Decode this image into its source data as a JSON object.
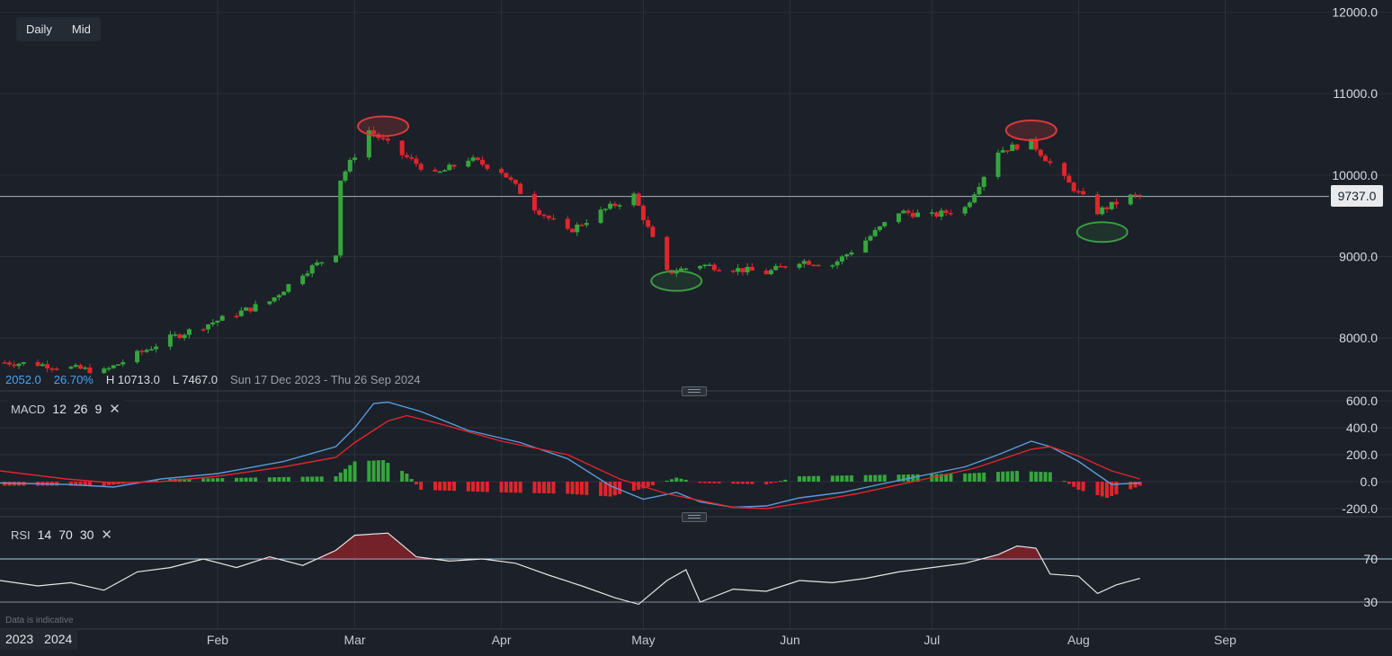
{
  "toolbar": {
    "timeframe_daily": "Daily",
    "timeframe_mid": "Mid"
  },
  "info_bar": {
    "change_points": "2052.0",
    "change_percent": "26.70%",
    "high": "H 10713.0",
    "low": "L 7467.0",
    "date_range": "Sun 17 Dec 2023 - Thu 26 Sep 2024"
  },
  "last_price": "9737.0",
  "colors": {
    "background": "#1b2029",
    "grid": "#2b313b",
    "up_candle": "#35a63c",
    "down_candle": "#e0262c",
    "macd_line": "#5a9bd8",
    "signal_line": "#e0262c",
    "rsi_line": "#e6e6e6",
    "rsi_band": "#a7d4f0",
    "highlight_red": "#d93a3a",
    "highlight_green": "#3a9c42"
  },
  "macd": {
    "name": "MACD",
    "fast": "12",
    "slow": "26",
    "signal": "9",
    "close_icon": "close-icon"
  },
  "rsi": {
    "name": "RSI",
    "period": "14",
    "upper": "70",
    "lower": "30",
    "close_icon": "close-icon"
  },
  "footer": {
    "note": "Data is indicative",
    "year_prev": "2023",
    "year_curr": "2024"
  },
  "chart_data": [
    {
      "type": "candlestick",
      "title": "",
      "y_axis": {
        "ticks": [
          "8000.0",
          "9000.0",
          "10000.0",
          "11000.0",
          "12000.0"
        ],
        "values": [
          8000,
          9000,
          10000,
          11000,
          12000
        ],
        "range": [
          7350,
          12150
        ],
        "position": "right"
      },
      "x_axis": {
        "range": [
          "2023-12-17",
          "2024-09-26"
        ],
        "month_ticks": [
          {
            "label": "Feb",
            "date": "2024-02-01"
          },
          {
            "label": "Mar",
            "date": "2024-03-01"
          },
          {
            "label": "Apr",
            "date": "2024-04-01"
          },
          {
            "label": "May",
            "date": "2024-05-01"
          },
          {
            "label": "Jun",
            "date": "2024-06-01"
          },
          {
            "label": "Jul",
            "date": "2024-07-01"
          },
          {
            "label": "Aug",
            "date": "2024-08-01"
          },
          {
            "label": "Sep",
            "date": "2024-09-01"
          }
        ]
      },
      "last_price_line": 9737,
      "grid": true,
      "candle_trace_closes": {
        "dates": [
          "2023-12-18",
          "2023-12-25",
          "2024-01-01",
          "2024-01-08",
          "2024-01-15",
          "2024-01-22",
          "2024-01-29",
          "2024-02-05",
          "2024-02-12",
          "2024-02-19",
          "2024-02-26",
          "2024-02-27",
          "2024-03-04",
          "2024-03-11",
          "2024-03-18",
          "2024-03-25",
          "2024-04-01",
          "2024-04-08",
          "2024-04-15",
          "2024-04-22",
          "2024-04-29",
          "2024-05-06",
          "2024-05-13",
          "2024-05-20",
          "2024-05-27",
          "2024-06-03",
          "2024-06-10",
          "2024-06-17",
          "2024-06-24",
          "2024-07-01",
          "2024-07-08",
          "2024-07-15",
          "2024-07-22",
          "2024-07-29",
          "2024-08-05",
          "2024-08-12"
        ],
        "closes": [
          7700,
          7680,
          7630,
          7590,
          7800,
          8000,
          8150,
          8300,
          8450,
          8800,
          9050,
          9950,
          10550,
          10250,
          10000,
          10200,
          10050,
          9600,
          9300,
          9550,
          9750,
          8800,
          8900,
          8850,
          8800,
          8950,
          8900,
          9200,
          9550,
          9500,
          9600,
          10300,
          10400,
          9950,
          9550,
          9737
        ]
      },
      "highlights": [
        {
          "kind": "resistance",
          "color": "red",
          "date": "2024-03-07",
          "price": 10600
        },
        {
          "kind": "support",
          "color": "green",
          "date": "2024-05-08",
          "price": 8700
        },
        {
          "kind": "resistance",
          "color": "red",
          "date": "2024-07-22",
          "price": 10550
        },
        {
          "kind": "support",
          "color": "green",
          "date": "2024-08-06",
          "price": 9300
        }
      ]
    },
    {
      "type": "line",
      "title": "MACD",
      "y_axis": {
        "ticks": [
          "-200.0",
          "0.0",
          "200.0",
          "400.0",
          "600.0"
        ],
        "values": [
          -200,
          0,
          200,
          400,
          600
        ],
        "range": [
          -260,
          640
        ]
      },
      "series": [
        {
          "name": "MACD",
          "points": [
            [
              "2023-12-17",
              -10
            ],
            [
              "2023-12-31",
              -20
            ],
            [
              "2024-01-10",
              -40
            ],
            [
              "2024-01-20",
              20
            ],
            [
              "2024-02-01",
              60
            ],
            [
              "2024-02-15",
              150
            ],
            [
              "2024-02-26",
              260
            ],
            [
              "2024-03-01",
              400
            ],
            [
              "2024-03-05",
              580
            ],
            [
              "2024-03-08",
              590
            ],
            [
              "2024-03-15",
              520
            ],
            [
              "2024-03-25",
              380
            ],
            [
              "2024-04-05",
              290
            ],
            [
              "2024-04-15",
              170
            ],
            [
              "2024-04-24",
              -30
            ],
            [
              "2024-05-01",
              -130
            ],
            [
              "2024-05-08",
              -80
            ],
            [
              "2024-05-13",
              -150
            ],
            [
              "2024-05-20",
              -190
            ],
            [
              "2024-05-27",
              -180
            ],
            [
              "2024-06-03",
              -120
            ],
            [
              "2024-06-12",
              -80
            ],
            [
              "2024-06-20",
              -20
            ],
            [
              "2024-07-01",
              60
            ],
            [
              "2024-07-08",
              110
            ],
            [
              "2024-07-15",
              200
            ],
            [
              "2024-07-22",
              300
            ],
            [
              "2024-07-26",
              260
            ],
            [
              "2024-08-01",
              150
            ],
            [
              "2024-08-08",
              -20
            ],
            [
              "2024-08-14",
              -10
            ]
          ]
        },
        {
          "name": "Signal",
          "points": [
            [
              "2023-12-17",
              80
            ],
            [
              "2023-12-31",
              20
            ],
            [
              "2024-01-10",
              -10
            ],
            [
              "2024-01-20",
              0
            ],
            [
              "2024-02-01",
              40
            ],
            [
              "2024-02-15",
              110
            ],
            [
              "2024-02-26",
              180
            ],
            [
              "2024-03-01",
              290
            ],
            [
              "2024-03-08",
              450
            ],
            [
              "2024-03-12",
              490
            ],
            [
              "2024-03-20",
              420
            ],
            [
              "2024-04-01",
              300
            ],
            [
              "2024-04-15",
              200
            ],
            [
              "2024-04-26",
              20
            ],
            [
              "2024-05-06",
              -90
            ],
            [
              "2024-05-20",
              -190
            ],
            [
              "2024-05-27",
              -200
            ],
            [
              "2024-06-05",
              -150
            ],
            [
              "2024-06-15",
              -90
            ],
            [
              "2024-07-01",
              30
            ],
            [
              "2024-07-10",
              100
            ],
            [
              "2024-07-22",
              240
            ],
            [
              "2024-07-26",
              260
            ],
            [
              "2024-08-01",
              190
            ],
            [
              "2024-08-08",
              80
            ],
            [
              "2024-08-14",
              20
            ]
          ]
        }
      ],
      "histogram": [
        [
          "2023-12-18",
          -30
        ],
        [
          "2024-01-08",
          -30
        ],
        [
          "2024-01-22",
          20
        ],
        [
          "2024-02-08",
          30
        ],
        [
          "2024-02-26",
          40
        ],
        [
          "2024-03-01",
          150
        ],
        [
          "2024-03-07",
          160
        ],
        [
          "2024-03-12",
          60
        ],
        [
          "2024-03-15",
          -60
        ],
        [
          "2024-04-01",
          -80
        ],
        [
          "2024-04-15",
          -90
        ],
        [
          "2024-04-24",
          -110
        ],
        [
          "2024-05-01",
          -50
        ],
        [
          "2024-05-08",
          30
        ],
        [
          "2024-05-13",
          -10
        ],
        [
          "2024-05-27",
          -20
        ],
        [
          "2024-06-03",
          40
        ],
        [
          "2024-06-20",
          50
        ],
        [
          "2024-07-08",
          60
        ],
        [
          "2024-07-19",
          80
        ],
        [
          "2024-07-26",
          70
        ],
        [
          "2024-08-01",
          -60
        ],
        [
          "2024-08-07",
          -120
        ],
        [
          "2024-08-14",
          -30
        ]
      ]
    },
    {
      "type": "line",
      "title": "RSI",
      "y_axis": {
        "ticks": [
          "30",
          "70"
        ],
        "values": [
          30,
          70
        ],
        "range": [
          5,
          105
        ]
      },
      "series": [
        {
          "name": "RSI",
          "points": [
            [
              "2023-12-17",
              50
            ],
            [
              "2023-12-25",
              45
            ],
            [
              "2024-01-01",
              48
            ],
            [
              "2024-01-08",
              41
            ],
            [
              "2024-01-15",
              58
            ],
            [
              "2024-01-22",
              62
            ],
            [
              "2024-01-29",
              70
            ],
            [
              "2024-02-05",
              62
            ],
            [
              "2024-02-12",
              72
            ],
            [
              "2024-02-19",
              64
            ],
            [
              "2024-02-26",
              78
            ],
            [
              "2024-03-01",
              92
            ],
            [
              "2024-03-08",
              94
            ],
            [
              "2024-03-14",
              72
            ],
            [
              "2024-03-21",
              68
            ],
            [
              "2024-03-28",
              70
            ],
            [
              "2024-04-04",
              66
            ],
            [
              "2024-04-11",
              55
            ],
            [
              "2024-04-18",
              45
            ],
            [
              "2024-04-25",
              34
            ],
            [
              "2024-04-30",
              28
            ],
            [
              "2024-05-06",
              50
            ],
            [
              "2024-05-10",
              60
            ],
            [
              "2024-05-13",
              30
            ],
            [
              "2024-05-20",
              42
            ],
            [
              "2024-05-27",
              40
            ],
            [
              "2024-06-03",
              50
            ],
            [
              "2024-06-10",
              48
            ],
            [
              "2024-06-17",
              52
            ],
            [
              "2024-06-24",
              58
            ],
            [
              "2024-07-01",
              62
            ],
            [
              "2024-07-08",
              66
            ],
            [
              "2024-07-15",
              74
            ],
            [
              "2024-07-19",
              82
            ],
            [
              "2024-07-23",
              80
            ],
            [
              "2024-07-26",
              56
            ],
            [
              "2024-08-01",
              54
            ],
            [
              "2024-08-05",
              38
            ],
            [
              "2024-08-09",
              46
            ],
            [
              "2024-08-14",
              52
            ]
          ]
        }
      ]
    }
  ]
}
